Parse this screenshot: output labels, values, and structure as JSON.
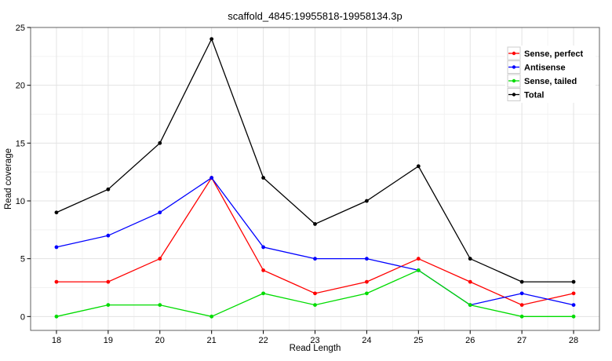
{
  "figure": {
    "title": "scaffold_4845:19955818-19958134.3p",
    "background": "#ffffff"
  },
  "chart_data": {
    "type": "line",
    "title": "scaffold_4845:19955818-19958134.3p",
    "xlabel": "Read Length",
    "ylabel": "Read coverage",
    "x": [
      18,
      19,
      20,
      21,
      22,
      23,
      24,
      25,
      26,
      27,
      28
    ],
    "series": [
      {
        "name": "Sense, perfect",
        "color": "#ff0000",
        "values": [
          3,
          3,
          5,
          12,
          4,
          2,
          3,
          5,
          3,
          1,
          2
        ]
      },
      {
        "name": "Antisense",
        "color": "#0000ff",
        "values": [
          6,
          7,
          9,
          12,
          6,
          5,
          5,
          4,
          1,
          2,
          1
        ]
      },
      {
        "name": "Sense, tailed",
        "color": "#00dc00",
        "values": [
          0,
          1,
          1,
          0,
          2,
          1,
          2,
          4,
          1,
          0,
          0
        ]
      },
      {
        "name": "Total",
        "color": "#000000",
        "values": [
          9,
          11,
          15,
          24,
          12,
          8,
          10,
          13,
          5,
          3,
          3
        ]
      }
    ],
    "xlim": [
      17.5,
      28.5
    ],
    "ylim": [
      -1.2,
      25.0
    ],
    "x_ticks": [
      18,
      19,
      20,
      21,
      22,
      23,
      24,
      25,
      26,
      27,
      28
    ],
    "y_ticks": [
      0,
      5,
      10,
      15,
      20,
      25
    ],
    "x_minor": [
      18.5,
      19.5,
      20.5,
      21.5,
      22.5,
      23.5,
      24.5,
      25.5,
      26.5,
      27.5
    ],
    "y_minor": [
      2.5,
      7.5,
      12.5,
      17.5,
      22.5
    ],
    "grid": true,
    "legend_position": "top-right",
    "legend": [
      "Sense, perfect",
      "Antisense",
      "Sense, tailed",
      "Total"
    ]
  },
  "colors": {
    "panel_border": "#606060",
    "grid_major": "#e3e3e3",
    "grid_minor": "#f2f2f2",
    "tick": "#000000",
    "text": "#000000",
    "legend_bg": "#ffffff",
    "legend_key_border": "#cccccc",
    "legend_key_bg": "#ffffff"
  }
}
